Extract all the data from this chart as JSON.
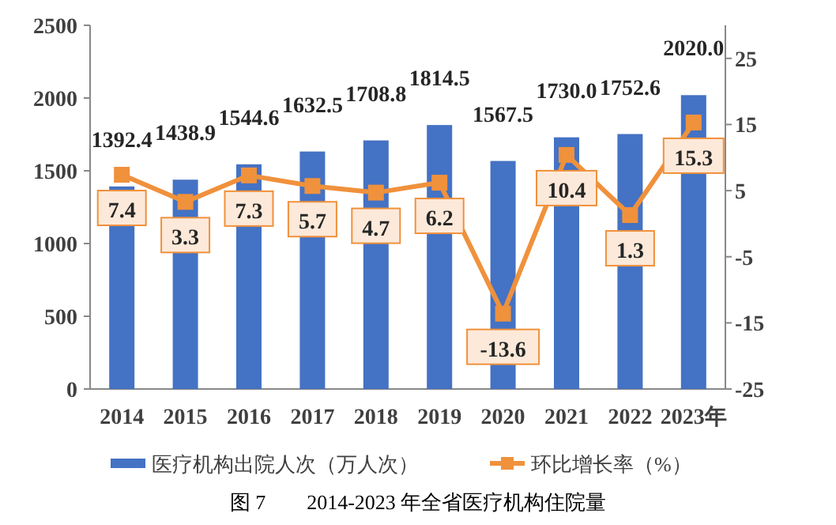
{
  "chart_data": {
    "type": "bar",
    "title": "图 7        2014-2023 年全省医疗机构住院量",
    "categories": [
      "2014",
      "2015",
      "2016",
      "2017",
      "2018",
      "2019",
      "2020",
      "2021",
      "2022",
      "2023年"
    ],
    "series": [
      {
        "name": "医疗机构出院人次（万人次）",
        "color": "#4472c4",
        "values": [
          1392.4,
          1438.9,
          1544.6,
          1632.5,
          1708.8,
          1814.5,
          1567.5,
          1730.0,
          1752.6,
          2020.0
        ],
        "value_labels": [
          "1392.4",
          "1438.9",
          "1544.6",
          "1632.5",
          "1708.8",
          "1814.5",
          "1567.5",
          "1730.0",
          "1752.6",
          "2020.0"
        ]
      },
      {
        "name": "环比增长率（%）",
        "type": "line",
        "axis": "y2",
        "color": "#f0913c",
        "marker": "square",
        "values": [
          7.4,
          3.3,
          7.3,
          5.7,
          4.7,
          6.2,
          -13.6,
          10.4,
          1.3,
          15.3
        ],
        "value_labels": [
          "7.4",
          "3.3",
          "7.3",
          "5.7",
          "4.7",
          "6.2",
          "-13.6",
          "10.4",
          "1.3",
          "15.3"
        ]
      }
    ],
    "ylim": [
      0,
      2500
    ],
    "yticks": [
      0,
      500,
      1000,
      1500,
      2000,
      2500
    ],
    "y2lim": [
      -25,
      30
    ],
    "y2ticks": [
      -25,
      -15,
      -5,
      5,
      15,
      25
    ],
    "legend": "bottom",
    "grid": false
  }
}
